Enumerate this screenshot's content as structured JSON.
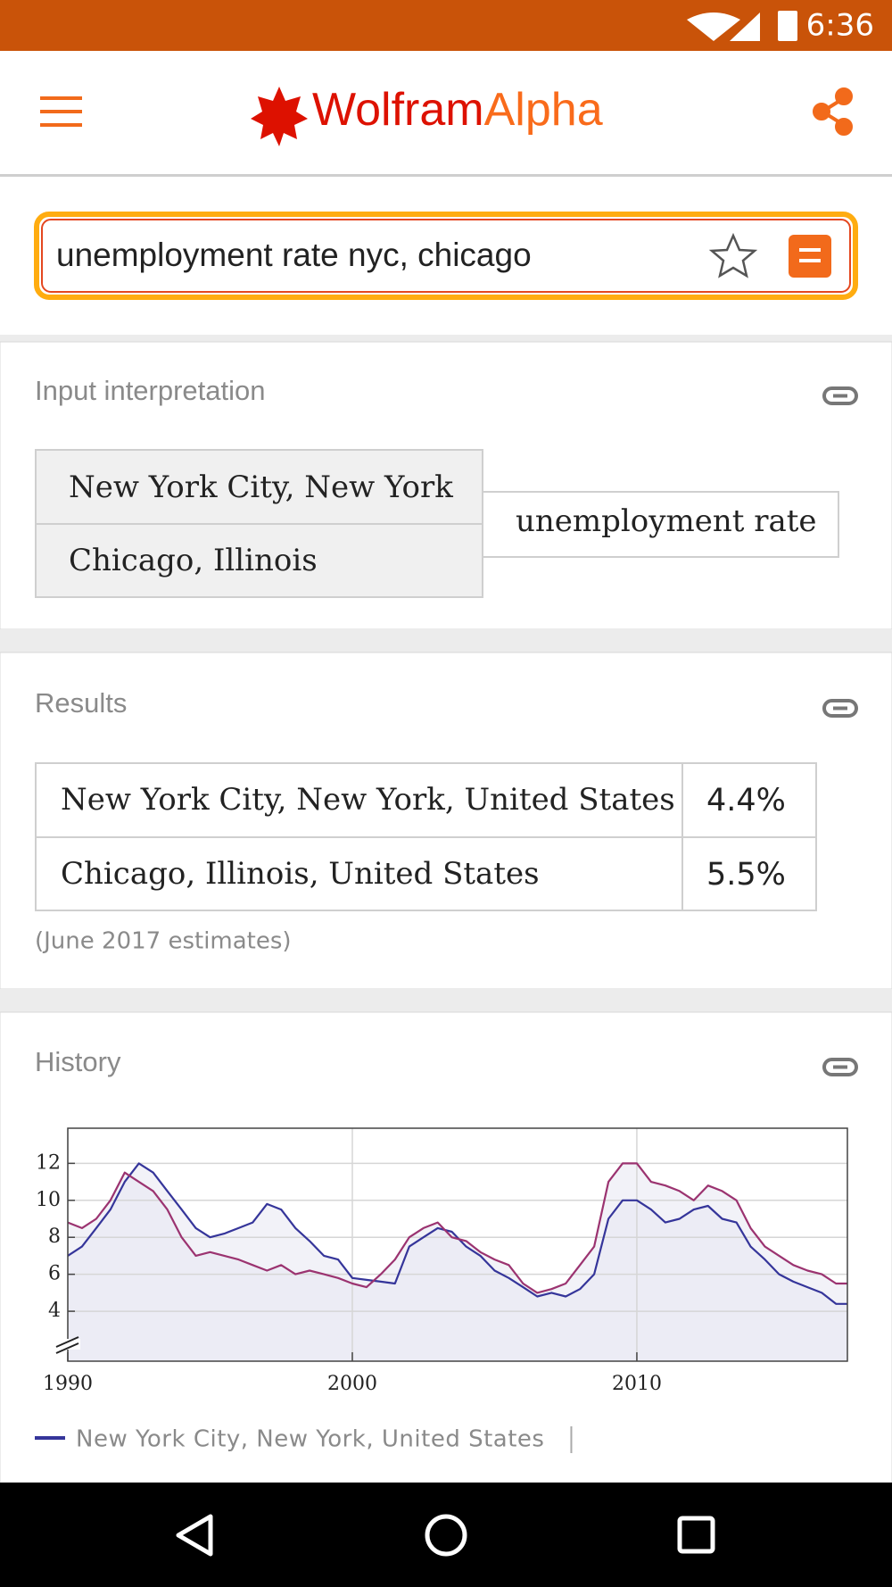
{
  "status_bar": {
    "time": "6:36"
  },
  "header": {
    "logo_wolfram": "Wolfram",
    "logo_alpha": "Alpha"
  },
  "search": {
    "query": "unemployment rate nyc, chicago"
  },
  "input_interpretation": {
    "title": "Input interpretation",
    "entities": [
      "New York City, New York",
      "Chicago, Illinois"
    ],
    "property": "unemployment rate"
  },
  "results": {
    "title": "Results",
    "rows": [
      [
        "New York City, New York, United States",
        "4.4%"
      ],
      [
        "Chicago, Illinois, United States",
        "5.5%"
      ]
    ],
    "note": "(June 2017 estimates)"
  },
  "chart_data": {
    "type": "line",
    "title": "History",
    "x": [
      1990,
      1990.5,
      1991,
      1991.5,
      1992,
      1992.5,
      1993,
      1993.5,
      1994,
      1994.5,
      1995,
      1995.5,
      1996,
      1996.5,
      1997,
      1997.5,
      1998,
      1998.5,
      1999,
      1999.5,
      2000,
      2000.5,
      2001,
      2001.5,
      2002,
      2002.5,
      2003,
      2003.5,
      2004,
      2004.5,
      2005,
      2005.5,
      2006,
      2006.5,
      2007,
      2007.5,
      2008,
      2008.5,
      2009,
      2009.5,
      2010,
      2010.5,
      2011,
      2011.5,
      2012,
      2012.5,
      2013,
      2013.5,
      2014,
      2014.5,
      2015,
      2015.5,
      2016,
      2016.5,
      2017,
      2017.4
    ],
    "series": [
      {
        "name": "New York City, New York, United States",
        "color": "#35359a",
        "values": [
          7.0,
          7.5,
          8.5,
          9.5,
          11.0,
          12.0,
          11.5,
          10.5,
          9.5,
          8.5,
          8.0,
          8.2,
          8.5,
          8.8,
          9.8,
          9.5,
          8.5,
          7.8,
          7.0,
          6.8,
          5.8,
          5.7,
          5.6,
          5.5,
          7.5,
          8.0,
          8.5,
          8.3,
          7.5,
          7.0,
          6.2,
          5.8,
          5.3,
          4.8,
          5.0,
          4.8,
          5.2,
          6.0,
          9.0,
          10.0,
          10.0,
          9.5,
          8.8,
          9.0,
          9.5,
          9.7,
          9.0,
          8.8,
          7.5,
          6.8,
          6.0,
          5.6,
          5.3,
          5.0,
          4.4,
          4.4
        ]
      },
      {
        "color": "#9b3370",
        "values": [
          8.8,
          8.5,
          9.0,
          10.0,
          11.5,
          11.0,
          10.5,
          9.5,
          8.0,
          7.0,
          7.2,
          7.0,
          6.8,
          6.5,
          6.2,
          6.5,
          6.0,
          6.2,
          6.0,
          5.8,
          5.5,
          5.3,
          6.0,
          6.8,
          8.0,
          8.5,
          8.8,
          8.0,
          7.8,
          7.2,
          6.8,
          6.5,
          5.5,
          5.0,
          5.2,
          5.5,
          6.5,
          7.5,
          11.0,
          12.0,
          12.0,
          11.0,
          10.8,
          10.5,
          10.0,
          10.8,
          10.5,
          10.0,
          8.5,
          7.5,
          7.0,
          6.5,
          6.2,
          6.0,
          5.5,
          5.5
        ]
      }
    ],
    "xlim": [
      1990,
      2017.4
    ],
    "xticks": [
      1990,
      2000,
      2010
    ],
    "ylim": [
      1.3,
      13.9
    ],
    "yticks": [
      4,
      6,
      8,
      10,
      12
    ],
    "grid": true
  }
}
